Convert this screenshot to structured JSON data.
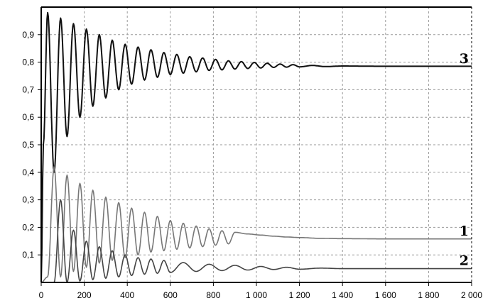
{
  "chart_data": {
    "type": "line",
    "title": "",
    "xlabel": "",
    "ylabel": "",
    "xlim": [
      0,
      2000
    ],
    "ylim": [
      0,
      1.0
    ],
    "grid": true,
    "x_ticks": [
      {
        "value": 0,
        "label": "0"
      },
      {
        "value": 200,
        "label": "200"
      },
      {
        "value": 400,
        "label": "400"
      },
      {
        "value": 600,
        "label": "600"
      },
      {
        "value": 800,
        "label": "800"
      },
      {
        "value": 1000,
        "label": "1 000"
      },
      {
        "value": 1200,
        "label": "1 200"
      },
      {
        "value": 1400,
        "label": "1 400"
      },
      {
        "value": 1600,
        "label": "1 600"
      },
      {
        "value": 1800,
        "label": "1 800"
      },
      {
        "value": 2000,
        "label": "2 000"
      }
    ],
    "y_ticks": [
      {
        "value": 0.1,
        "label": "0,1"
      },
      {
        "value": 0.2,
        "label": "0,2"
      },
      {
        "value": 0.3,
        "label": "0,3"
      },
      {
        "value": 0.4,
        "label": "0,4"
      },
      {
        "value": 0.5,
        "label": "0,5"
      },
      {
        "value": 0.6,
        "label": "0,6"
      },
      {
        "value": 0.7,
        "label": "0,7"
      },
      {
        "value": 0.8,
        "label": "0,8"
      },
      {
        "value": 0.9,
        "label": "0,9"
      }
    ],
    "series": [
      {
        "label": "3",
        "color": "#111111",
        "steady_state": 0.785,
        "period": 60,
        "x": [
          0,
          10,
          30,
          60,
          90,
          120,
          150,
          180,
          210,
          240,
          270,
          300,
          330,
          360,
          390,
          420,
          450,
          480,
          510,
          540,
          570,
          600,
          630,
          660,
          690,
          720,
          750,
          780,
          810,
          840,
          870,
          900,
          930,
          960,
          990,
          1020,
          1050,
          1080,
          1110,
          1140,
          1170,
          1200,
          1260,
          1320,
          1400,
          1600,
          1800,
          2000
        ],
        "y": [
          0.0,
          0.5,
          0.98,
          0.4,
          0.96,
          0.53,
          0.94,
          0.6,
          0.92,
          0.64,
          0.9,
          0.67,
          0.88,
          0.7,
          0.865,
          0.72,
          0.855,
          0.735,
          0.845,
          0.745,
          0.835,
          0.755,
          0.828,
          0.76,
          0.82,
          0.765,
          0.815,
          0.77,
          0.81,
          0.772,
          0.805,
          0.775,
          0.802,
          0.777,
          0.799,
          0.779,
          0.796,
          0.781,
          0.793,
          0.782,
          0.791,
          0.783,
          0.788,
          0.784,
          0.786,
          0.785,
          0.785,
          0.785
        ]
      },
      {
        "label": "1",
        "color": "#777777",
        "steady_state": 0.158,
        "period": 60,
        "x": [
          0,
          30,
          60,
          90,
          120,
          150,
          180,
          210,
          240,
          270,
          300,
          330,
          360,
          390,
          420,
          450,
          480,
          510,
          540,
          570,
          600,
          630,
          660,
          690,
          720,
          750,
          780,
          810,
          840,
          870,
          900,
          960,
          1020,
          1080,
          1140,
          1200,
          1300,
          1400,
          1600,
          1800,
          2000
        ],
        "y": [
          0.0,
          0.02,
          0.42,
          0.02,
          0.39,
          0.04,
          0.36,
          0.055,
          0.335,
          0.07,
          0.31,
          0.08,
          0.29,
          0.09,
          0.27,
          0.1,
          0.255,
          0.11,
          0.24,
          0.115,
          0.225,
          0.12,
          0.215,
          0.125,
          0.205,
          0.13,
          0.195,
          0.135,
          0.188,
          0.14,
          0.182,
          0.176,
          0.172,
          0.168,
          0.165,
          0.163,
          0.16,
          0.159,
          0.158,
          0.158,
          0.158
        ]
      },
      {
        "label": "2",
        "color": "#444444",
        "steady_state": 0.05,
        "period": 60,
        "x": [
          0,
          30,
          60,
          90,
          120,
          150,
          180,
          210,
          240,
          270,
          300,
          330,
          360,
          390,
          420,
          450,
          480,
          510,
          540,
          570,
          600,
          660,
          720,
          780,
          840,
          900,
          960,
          1020,
          1080,
          1140,
          1200,
          1300,
          1400,
          1600,
          1800,
          2000
        ],
        "y": [
          0.0,
          0.0,
          0.0,
          0.3,
          0.0,
          0.19,
          0.005,
          0.15,
          0.01,
          0.13,
          0.015,
          0.115,
          0.02,
          0.1,
          0.025,
          0.09,
          0.03,
          0.085,
          0.033,
          0.08,
          0.036,
          0.072,
          0.04,
          0.066,
          0.043,
          0.062,
          0.045,
          0.058,
          0.047,
          0.055,
          0.048,
          0.052,
          0.05,
          0.05,
          0.05,
          0.05
        ]
      }
    ]
  }
}
